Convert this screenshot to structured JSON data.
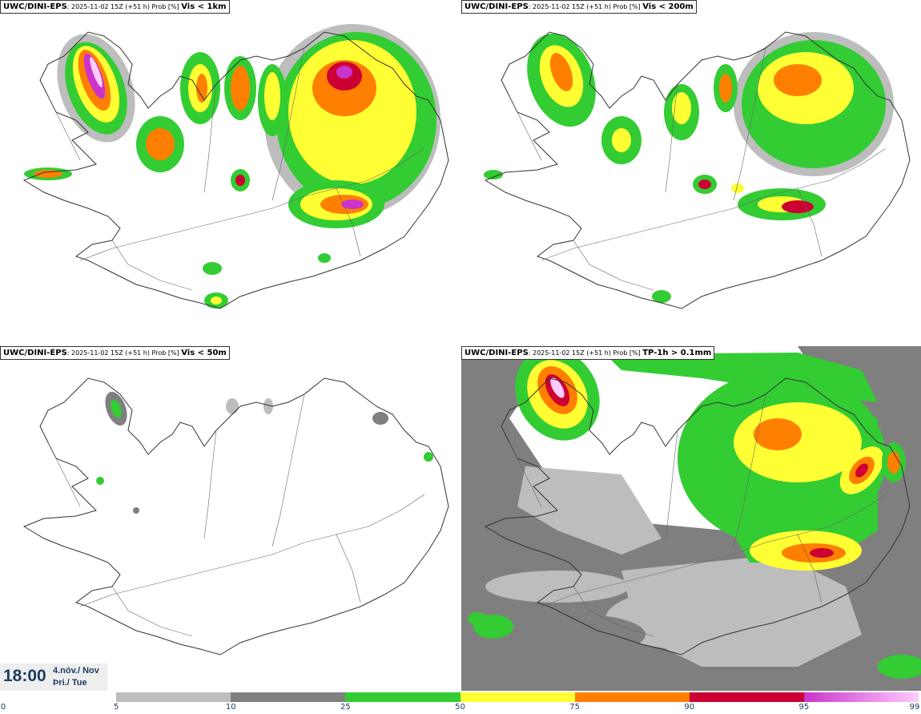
{
  "panels": [
    {
      "id": "vis1km",
      "model": "UWC/DINI-EPS",
      "meta": ": 2025-11-02 15Z (+51 h) Prob [%]",
      "variable": "Vis < 1km"
    },
    {
      "id": "vis200m",
      "model": "UWC/DINI-EPS",
      "meta": ": 2025-11-02 15Z (+51 h) Prob [%]",
      "variable": "Vis < 200m"
    },
    {
      "id": "vis50m",
      "model": "UWC/DINI-EPS",
      "meta": ": 2025-11-02 15Z (+51 h) Prob [%]",
      "variable": "Vis < 50m"
    },
    {
      "id": "tp1h",
      "model": "UWC/DINI-EPS",
      "meta": ": 2025-11-02 15Z (+51 h) Prob [%]",
      "variable": "TP-1h > 0.1mm"
    }
  ],
  "valid_time": {
    "time": "18:00",
    "date_line1": "4.nóv./ Nov",
    "date_line2": "Þri./ Tue"
  },
  "legend": {
    "ticks": [
      "0",
      "5",
      "10",
      "25",
      "50",
      "75",
      "90",
      "95",
      "99"
    ],
    "colors": [
      "#ffffff",
      "#bdbdbd",
      "#7f7f7f",
      "#33cc33",
      "#ffff33",
      "#ff7f00",
      "#cc0033",
      "#cc33cc",
      "#ffccff"
    ]
  }
}
